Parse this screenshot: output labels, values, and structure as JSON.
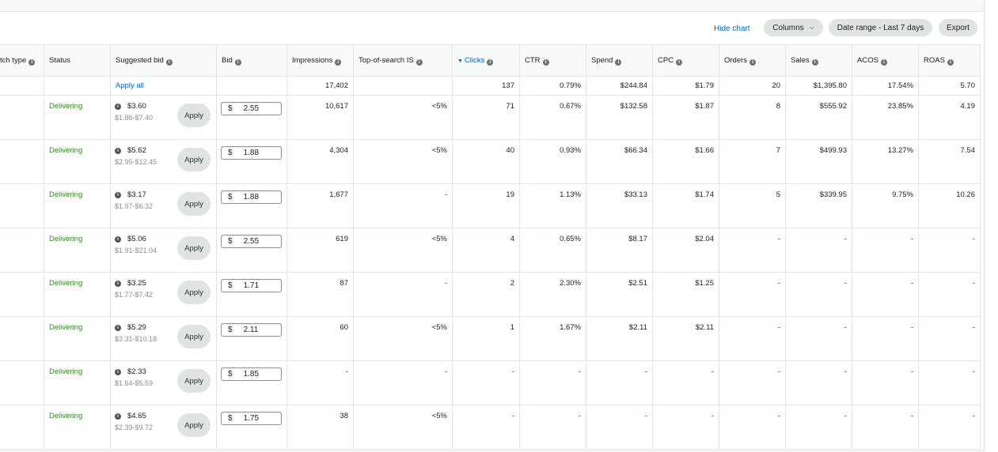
{
  "toolbar": {
    "hide_chart": "Hide chart",
    "columns": "Columns",
    "date_range": "Date range - Last 7 days",
    "export": "Export"
  },
  "columns": {
    "match_type": "tch type",
    "status": "Status",
    "suggested_bid": "Suggested bid",
    "bid": "Bid",
    "impressions": "Impressions",
    "top_of_search": "Top-of-search IS",
    "clicks": "Clicks",
    "ctr": "CTR",
    "spend": "Spend",
    "cpc": "CPC",
    "orders": "Orders",
    "sales": "Sales",
    "acos": "ACOS",
    "roas": "ROAS"
  },
  "totals": {
    "apply_all": "Apply all",
    "impressions": "17,402",
    "clicks": "137",
    "ctr": "0.79%",
    "spend": "$244.84",
    "cpc": "$1.79",
    "orders": "20",
    "sales": "$1,395.80",
    "acos": "17.54%",
    "roas": "5.70"
  },
  "apply_label": "Apply",
  "currency": "$",
  "rows": [
    {
      "status": "Delivering",
      "sugg": "$3.60",
      "range": "$1.86-$7.40",
      "bid": "2.55",
      "impressions": "10,617",
      "tos": "<5%",
      "clicks": "71",
      "ctr": "0.67%",
      "spend": "$132.58",
      "cpc": "$1.87",
      "orders": "8",
      "sales": "$555.92",
      "acos": "23.85%",
      "roas": "4.19"
    },
    {
      "status": "Delivering",
      "sugg": "$5.62",
      "range": "$2.95-$12.45",
      "bid": "1.88",
      "impressions": "4,304",
      "tos": "<5%",
      "clicks": "40",
      "ctr": "0.93%",
      "spend": "$66.34",
      "cpc": "$1.66",
      "orders": "7",
      "sales": "$499.93",
      "acos": "13.27%",
      "roas": "7.54"
    },
    {
      "status": "Delivering",
      "sugg": "$3.17",
      "range": "$1.97-$6.32",
      "bid": "1.88",
      "impressions": "1,677",
      "tos": "-",
      "clicks": "19",
      "ctr": "1.13%",
      "spend": "$33.13",
      "cpc": "$1.74",
      "orders": "5",
      "sales": "$339.95",
      "acos": "9.75%",
      "roas": "10.26"
    },
    {
      "status": "Delivering",
      "sugg": "$5.06",
      "range": "$1.91-$21.04",
      "bid": "2.55",
      "impressions": "619",
      "tos": "<5%",
      "clicks": "4",
      "ctr": "0.65%",
      "spend": "$8.17",
      "cpc": "$2.04",
      "orders": "-",
      "sales": "-",
      "acos": "-",
      "roas": "-"
    },
    {
      "status": "Delivering",
      "sugg": "$3.25",
      "range": "$1.77-$7.42",
      "bid": "1.71",
      "impressions": "87",
      "tos": "-",
      "clicks": "2",
      "ctr": "2.30%",
      "spend": "$2.51",
      "cpc": "$1.25",
      "orders": "-",
      "sales": "-",
      "acos": "-",
      "roas": "-"
    },
    {
      "status": "Delivering",
      "sugg": "$5.29",
      "range": "$3.31-$10.18",
      "bid": "2.11",
      "impressions": "60",
      "tos": "<5%",
      "clicks": "1",
      "ctr": "1.67%",
      "spend": "$2.11",
      "cpc": "$2.11",
      "orders": "-",
      "sales": "-",
      "acos": "-",
      "roas": "-"
    },
    {
      "status": "Delivering",
      "sugg": "$2.33",
      "range": "$1.64-$5.59",
      "bid": "1.85",
      "impressions": "-",
      "tos": "-",
      "clicks": "-",
      "ctr": "-",
      "spend": "-",
      "cpc": "-",
      "orders": "-",
      "sales": "-",
      "acos": "-",
      "roas": "-"
    },
    {
      "status": "Delivering",
      "sugg": "$4.65",
      "range": "$2.39-$9.72",
      "bid": "1.75",
      "impressions": "38",
      "tos": "<5%",
      "clicks": "-",
      "ctr": "-",
      "spend": "-",
      "cpc": "-",
      "orders": "-",
      "sales": "-",
      "acos": "-",
      "roas": "-"
    }
  ]
}
